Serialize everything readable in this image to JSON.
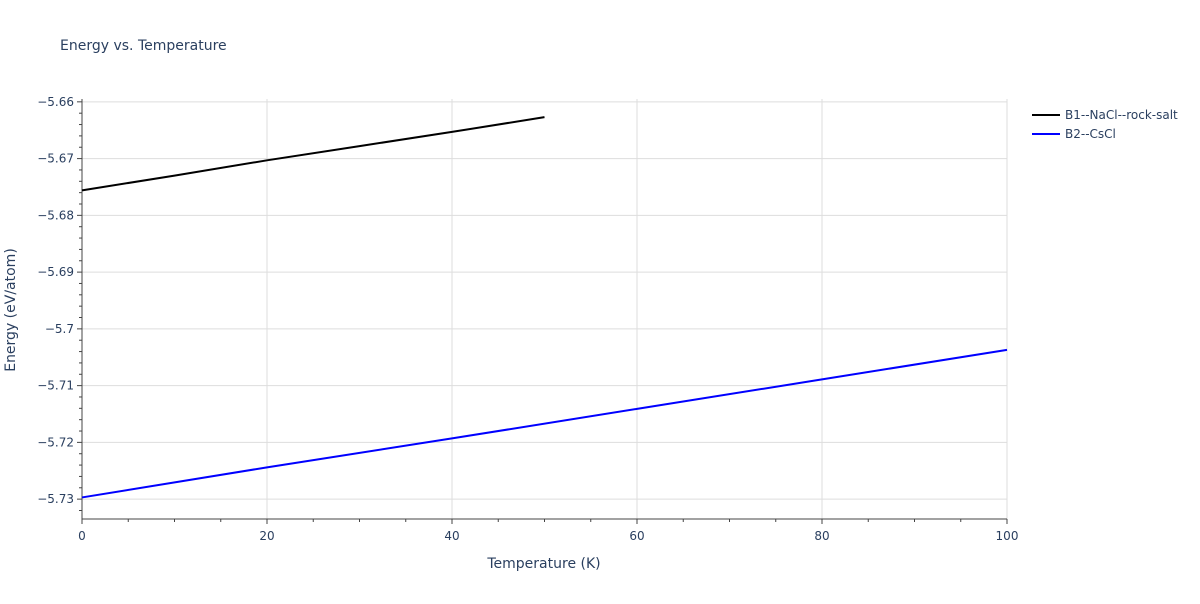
{
  "chart_data": {
    "type": "line",
    "title": "Energy vs. Temperature",
    "xlabel": "Temperature (K)",
    "ylabel": "Energy (eV/atom)",
    "xlim": [
      0,
      100
    ],
    "ylim": [
      -5.7335,
      -5.6595
    ],
    "x_ticks": [
      0,
      20,
      40,
      60,
      80,
      100
    ],
    "x_tick_labels": [
      "0",
      "20",
      "40",
      "60",
      "80",
      "100"
    ],
    "y_ticks": [
      -5.66,
      -5.67,
      -5.68,
      -5.69,
      -5.7,
      -5.71,
      -5.72,
      -5.73
    ],
    "y_tick_labels": [
      "−5.66",
      "−5.67",
      "−5.68",
      "−5.69",
      "−5.7",
      "−5.71",
      "−5.72",
      "−5.73"
    ],
    "grid": true,
    "legend_position": "top-right outside",
    "series": [
      {
        "name": "B1--NaCl--rock-salt",
        "color": "#000000",
        "x": [
          0,
          10,
          20,
          30,
          40,
          50
        ],
        "y": [
          -5.6756,
          -5.673,
          -5.6703,
          -5.6678,
          -5.6653,
          -5.6627
        ]
      },
      {
        "name": "B2--CsCl",
        "color": "#0000ff",
        "x": [
          0,
          20,
          40,
          60,
          80,
          100
        ],
        "y": [
          -5.7297,
          -5.7244,
          -5.7193,
          -5.7141,
          -5.7089,
          -5.7037
        ]
      }
    ]
  }
}
